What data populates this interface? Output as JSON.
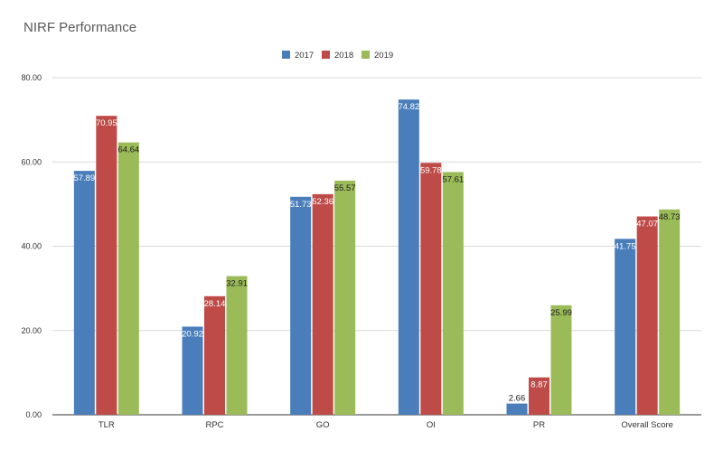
{
  "chart_data": {
    "type": "bar",
    "title": "NIRF Performance",
    "xlabel": "",
    "ylabel": "",
    "categories": [
      "TLR",
      "RPC",
      "GO",
      "OI",
      "PR",
      "Overall Score"
    ],
    "series": [
      {
        "name": "2017",
        "color": "#4a7ebb",
        "values": [
          57.89,
          20.92,
          51.73,
          74.82,
          2.66,
          41.75
        ]
      },
      {
        "name": "2018",
        "color": "#be4b48",
        "values": [
          70.95,
          28.14,
          52.36,
          59.78,
          8.87,
          47.07
        ]
      },
      {
        "name": "2019",
        "color": "#9bbb59",
        "values": [
          64.64,
          32.91,
          55.57,
          57.61,
          25.99,
          48.73
        ]
      }
    ],
    "ylim": [
      0,
      80
    ],
    "yticks": [
      "0.00",
      "20.00",
      "40.00",
      "60.00",
      "80.00"
    ],
    "grid": true,
    "legend_position": "top-center",
    "data_labels": [
      "57.89",
      "20.92",
      "51.73",
      "74.82",
      "2.66",
      "41.75",
      "70.95",
      "28.14",
      "52.36",
      "59.78",
      "8.87",
      "47.07",
      "64.64",
      "32.91",
      "55.57",
      "57.61",
      "25.99",
      "48.73"
    ]
  }
}
